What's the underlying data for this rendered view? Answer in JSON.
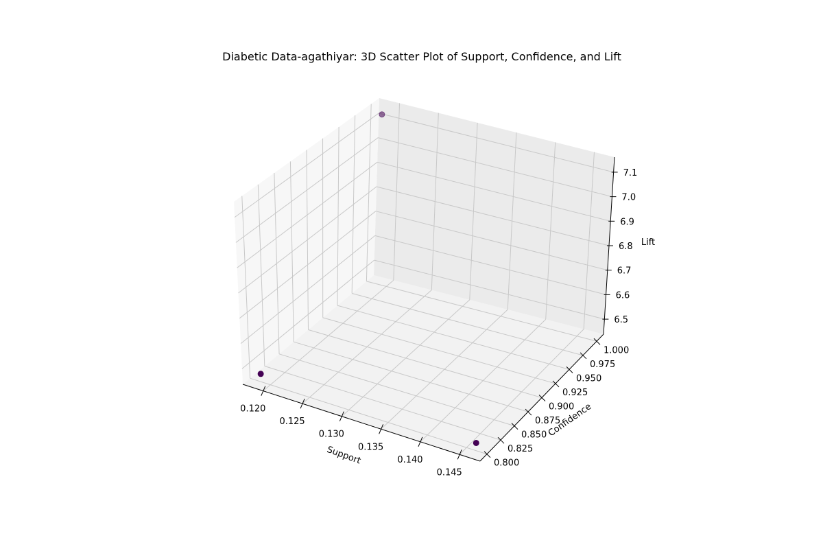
{
  "chart_data": {
    "type": "scatter",
    "projection": "3d",
    "title": "Diabetic Data-agathiyar: 3D Scatter Plot of Support, Confidence, and Lift",
    "xlabel": "Support",
    "ylabel": "Confidence",
    "zlabel": "Lift",
    "xlim": [
      0.1174,
      0.1476
    ],
    "ylim": [
      0.7875,
      1.0125
    ],
    "zlim": [
      6.4386,
      7.1614
    ],
    "xticks": [
      "0.120",
      "0.125",
      "0.130",
      "0.135",
      "0.140",
      "0.145"
    ],
    "yticks": [
      "0.800",
      "0.825",
      "0.850",
      "0.875",
      "0.900",
      "0.925",
      "0.950",
      "0.975",
      "1.000"
    ],
    "zticks": [
      "6.5",
      "6.6",
      "6.7",
      "6.8",
      "6.9",
      "7.0",
      "7.1"
    ],
    "grid": true,
    "colormap": "viridis",
    "points": [
      {
        "support": 0.1188,
        "confidence": 0.8,
        "lift": 6.47,
        "color": "#440154"
      },
      {
        "support": 0.1462,
        "confidence": 0.8,
        "lift": 6.47,
        "color": "#440154"
      },
      {
        "support": 0.1188,
        "confidence": 1.0,
        "lift": 7.13,
        "color": "#440154"
      }
    ]
  }
}
